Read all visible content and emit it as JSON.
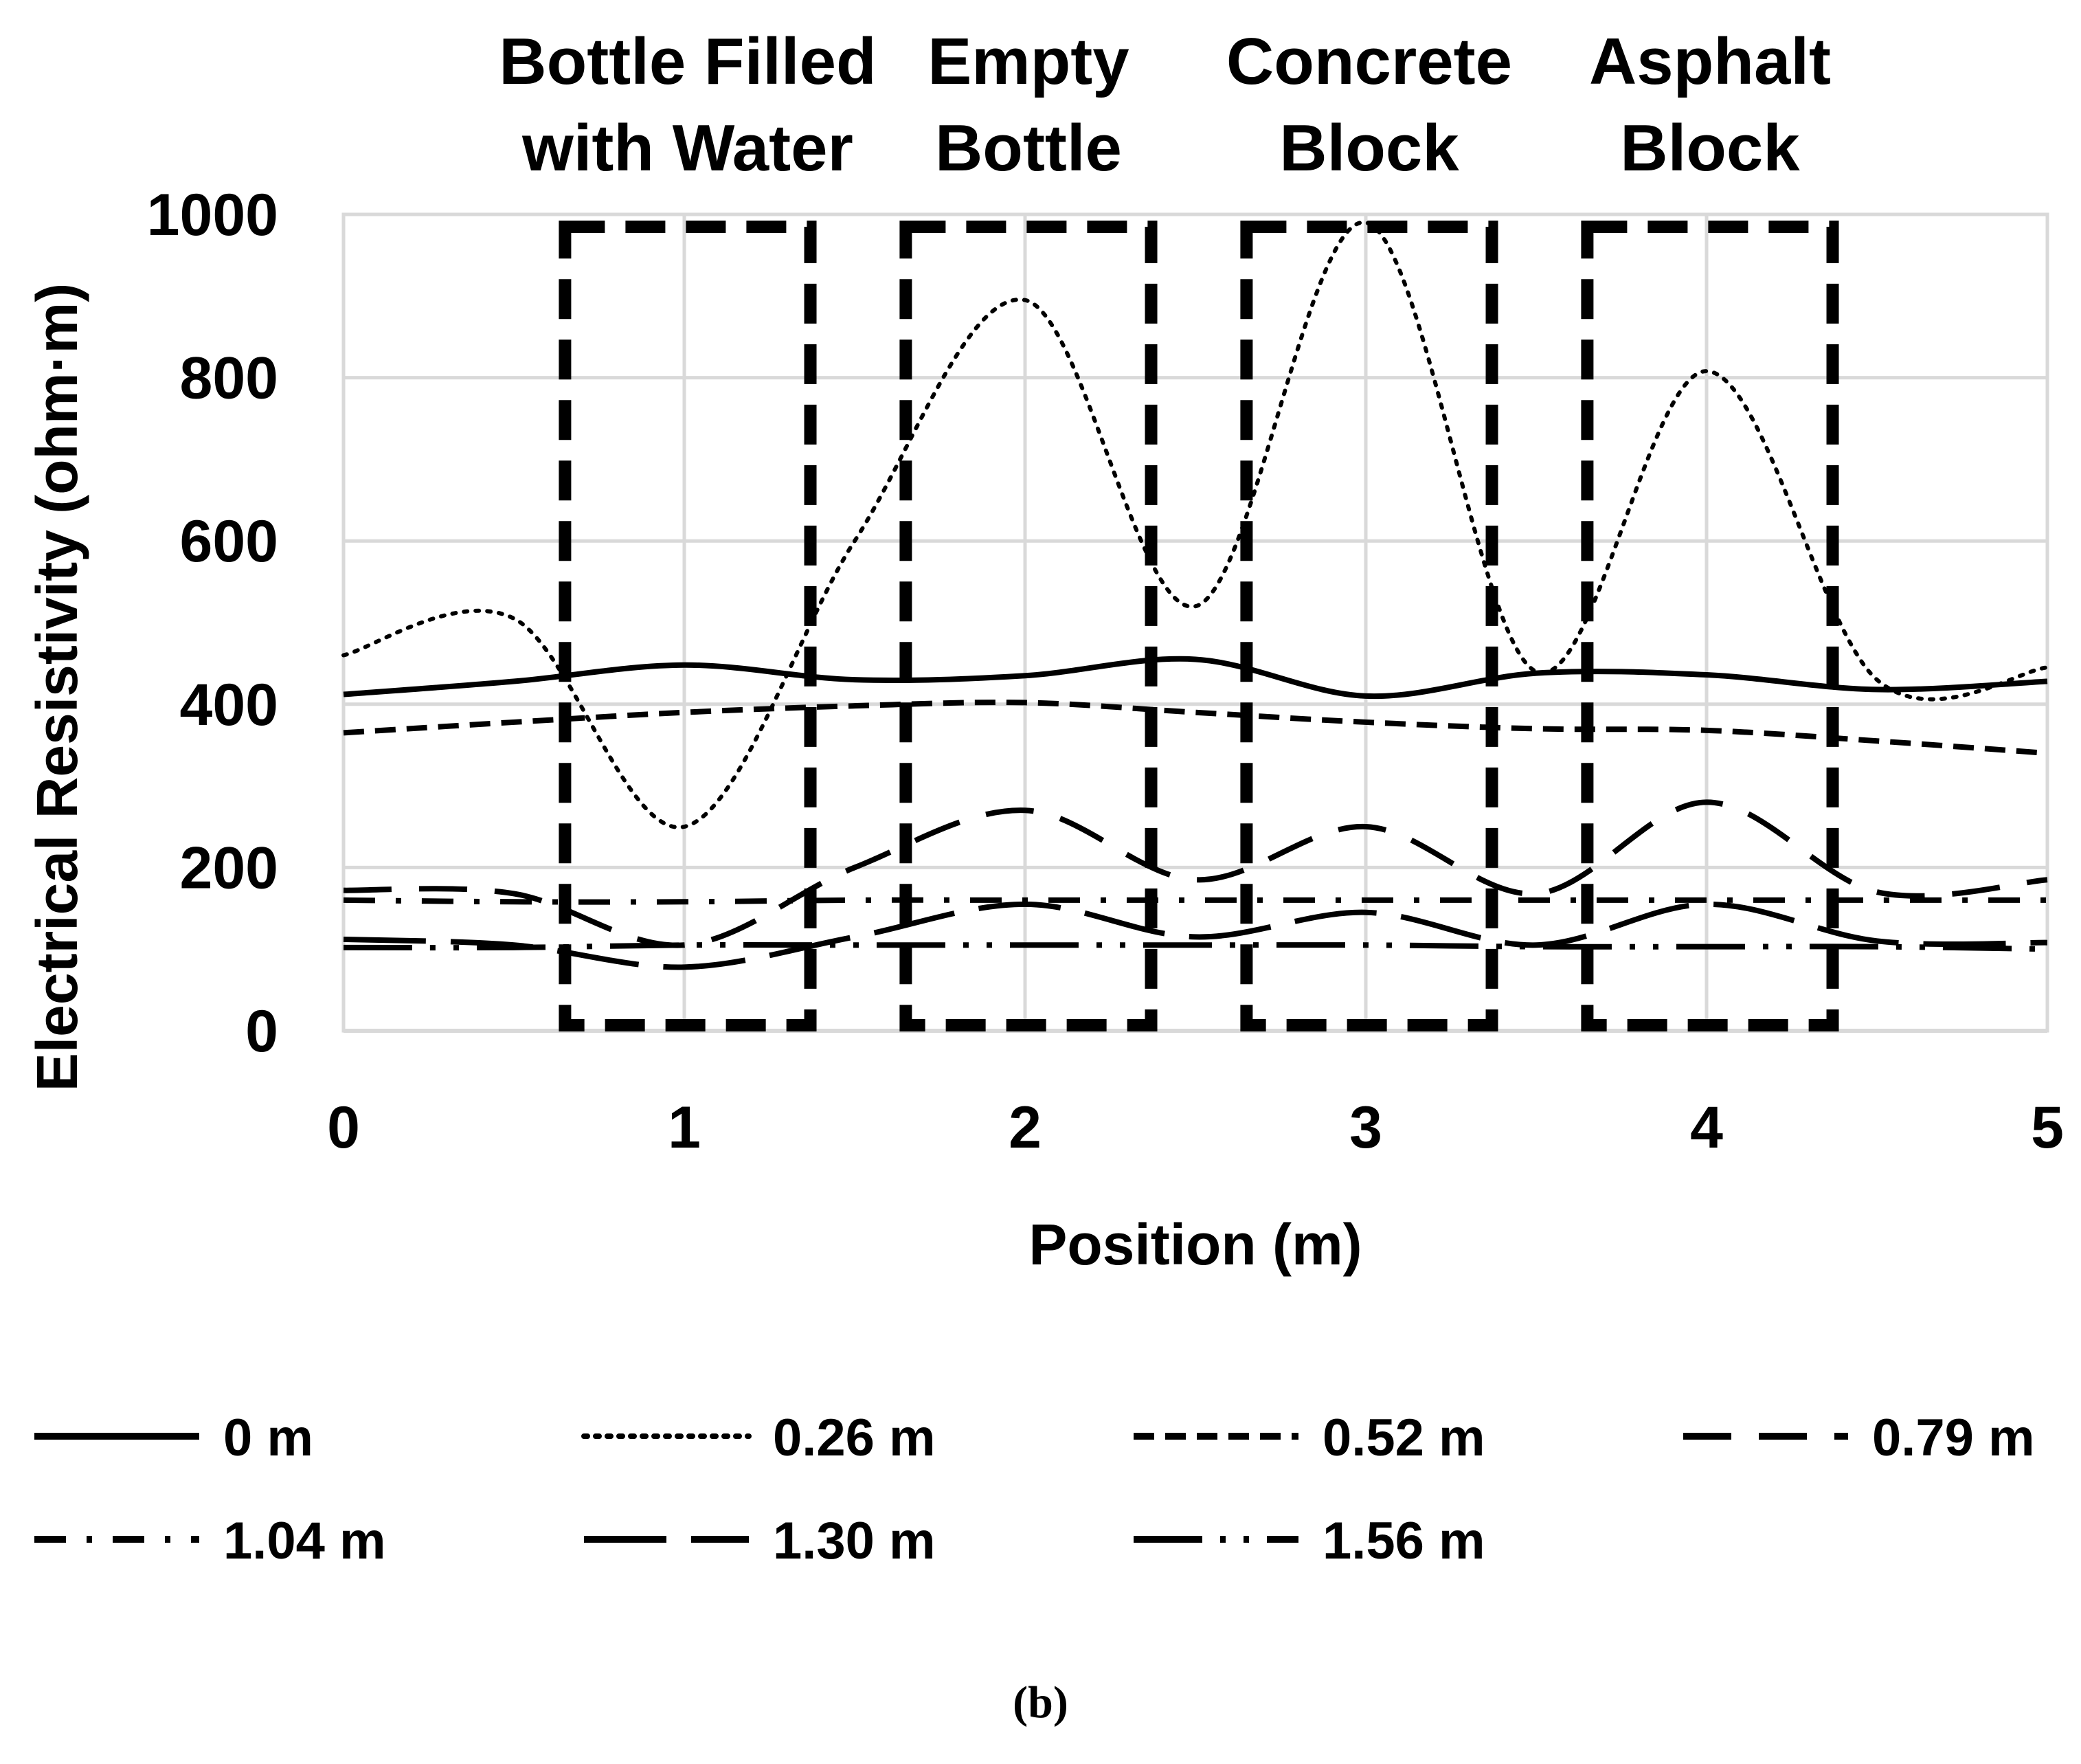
{
  "chart_data": {
    "type": "line",
    "xlabel": "Position (m)",
    "ylabel": "Electrical Resistivity (ohm·m)",
    "xlim": [
      0,
      5
    ],
    "ylim": [
      0,
      1000
    ],
    "xticks": [
      "0",
      "1",
      "2",
      "3",
      "4",
      "5"
    ],
    "yticks": [
      "0",
      "200",
      "400",
      "600",
      "800",
      "1000"
    ],
    "grid": true,
    "legend_position": "bottom",
    "regions": [
      {
        "label_lines": [
          "Bottle Filled",
          "with Water"
        ],
        "x_range": [
          0.65,
          1.37
        ]
      },
      {
        "label_lines": [
          "Empty",
          "Bottle"
        ],
        "x_range": [
          1.65,
          2.37
        ]
      },
      {
        "label_lines": [
          "Concrete",
          "Block"
        ],
        "x_range": [
          2.65,
          3.37
        ]
      },
      {
        "label_lines": [
          "Asphalt",
          "Block"
        ],
        "x_range": [
          3.65,
          4.37
        ]
      }
    ],
    "x": [
      0,
      0.5,
      1,
      1.5,
      2,
      2.5,
      3,
      3.5,
      4,
      4.5,
      5
    ],
    "series": [
      {
        "name": "0 m",
        "style": "solid",
        "values": [
          412,
          428,
          448,
          430,
          435,
          455,
          410,
          438,
          436,
          418,
          428
        ]
      },
      {
        "name": "0.26 m",
        "style": "dotted",
        "values": [
          460,
          505,
          250,
          600,
          895,
          520,
          990,
          440,
          808,
          430,
          445
        ]
      },
      {
        "name": "0.52 m",
        "style": "dashed",
        "values": [
          365,
          378,
          390,
          398,
          402,
          390,
          378,
          370,
          368,
          355,
          340
        ]
      },
      {
        "name": "0.79 m",
        "style": "long-dashed",
        "values": [
          172,
          168,
          105,
          200,
          270,
          185,
          250,
          168,
          280,
          170,
          185
        ]
      },
      {
        "name": "1.04 m",
        "style": "dash-dot",
        "values": [
          160,
          158,
          158,
          160,
          160,
          160,
          160,
          160,
          160,
          160,
          160
        ]
      },
      {
        "name": "1.30 m",
        "style": "long-dash-gap",
        "values": [
          112,
          105,
          78,
          115,
          155,
          115,
          145,
          105,
          155,
          110,
          108
        ]
      },
      {
        "name": "1.56 m",
        "style": "long-dash-dot-dot",
        "values": [
          102,
          102,
          105,
          105,
          105,
          105,
          105,
          103,
          103,
          103,
          100
        ]
      }
    ],
    "caption": "(b)"
  }
}
